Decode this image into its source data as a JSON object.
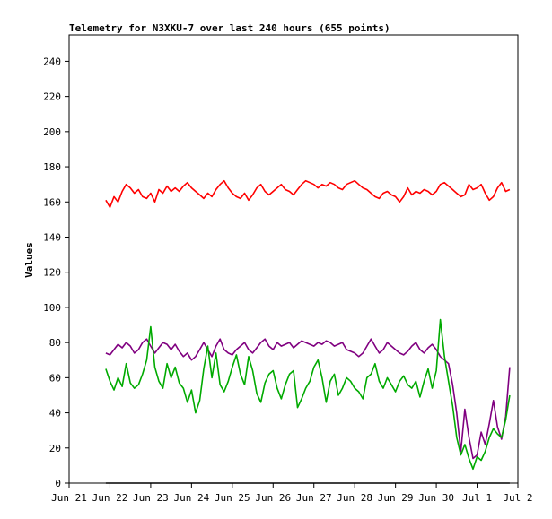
{
  "chart_data": {
    "type": "line",
    "title": "Telemetry for N3XKU-7 over last 240 hours (655 points)",
    "xlabel": "",
    "ylabel": "Values",
    "ylim": [
      0,
      255
    ],
    "xlim": [
      0,
      11
    ],
    "yticks": [
      0,
      20,
      40,
      60,
      80,
      100,
      120,
      140,
      160,
      180,
      200,
      220,
      240
    ],
    "xticks": [
      {
        "x": 0,
        "label": "Jun 21"
      },
      {
        "x": 1,
        "label": "Jun 22"
      },
      {
        "x": 2,
        "label": "Jun 23"
      },
      {
        "x": 3,
        "label": "Jun 24"
      },
      {
        "x": 4,
        "label": "Jun 25"
      },
      {
        "x": 5,
        "label": "Jun 26"
      },
      {
        "x": 6,
        "label": "Jun 27"
      },
      {
        "x": 7,
        "label": "Jun 28"
      },
      {
        "x": 8,
        "label": "Jun 29"
      },
      {
        "x": 9,
        "label": "Jun 30"
      },
      {
        "x": 10,
        "label": "Jul 1"
      },
      {
        "x": 11,
        "label": "Jul 2"
      }
    ],
    "grid": false,
    "legend": "none",
    "series": [
      {
        "color": "#ff0000",
        "x": [
          0.9,
          1.0,
          1.1,
          1.2,
          1.3,
          1.4,
          1.5,
          1.6,
          1.7,
          1.8,
          1.9,
          2.0,
          2.1,
          2.2,
          2.3,
          2.4,
          2.5,
          2.6,
          2.7,
          2.8,
          2.9,
          3.0,
          3.1,
          3.2,
          3.3,
          3.4,
          3.5,
          3.6,
          3.7,
          3.8,
          3.9,
          4.0,
          4.1,
          4.2,
          4.3,
          4.4,
          4.5,
          4.6,
          4.7,
          4.8,
          4.9,
          5.0,
          5.1,
          5.2,
          5.3,
          5.4,
          5.5,
          5.6,
          5.7,
          5.8,
          5.9,
          6.0,
          6.1,
          6.2,
          6.3,
          6.4,
          6.5,
          6.6,
          6.7,
          6.8,
          6.9,
          7.0,
          7.1,
          7.2,
          7.3,
          7.4,
          7.5,
          7.6,
          7.7,
          7.8,
          7.9,
          8.0,
          8.1,
          8.2,
          8.3,
          8.4,
          8.5,
          8.6,
          8.7,
          8.8,
          8.9,
          9.0,
          9.1,
          9.2,
          9.3,
          9.4,
          9.5,
          9.6,
          9.7,
          9.8,
          9.9,
          10.0,
          10.1,
          10.2,
          10.3,
          10.4,
          10.5,
          10.6,
          10.7,
          10.8
        ],
        "y": [
          161,
          157,
          163,
          160,
          166,
          170,
          168,
          165,
          167,
          163,
          162,
          165,
          160,
          167,
          165,
          169,
          166,
          168,
          166,
          169,
          171,
          168,
          166,
          164,
          162,
          165,
          163,
          167,
          170,
          172,
          168,
          165,
          163,
          162,
          165,
          161,
          164,
          168,
          170,
          166,
          164,
          166,
          168,
          170,
          167,
          166,
          164,
          167,
          170,
          172,
          171,
          170,
          168,
          170,
          169,
          171,
          170,
          168,
          167,
          170,
          171,
          172,
          170,
          168,
          167,
          165,
          163,
          162,
          165,
          166,
          164,
          163,
          160,
          163,
          168,
          164,
          166,
          165,
          167,
          166,
          164,
          166,
          170,
          171,
          169,
          167,
          165,
          163,
          164,
          170,
          167,
          168,
          170,
          165,
          161,
          163,
          168,
          171,
          166,
          167
        ],
        "y_note": ""
      },
      {
        "color": "#800080",
        "x": [
          0.9,
          1.0,
          1.1,
          1.2,
          1.3,
          1.4,
          1.5,
          1.6,
          1.7,
          1.8,
          1.9,
          2.0,
          2.1,
          2.2,
          2.3,
          2.4,
          2.5,
          2.6,
          2.7,
          2.8,
          2.9,
          3.0,
          3.1,
          3.2,
          3.3,
          3.4,
          3.5,
          3.6,
          3.7,
          3.8,
          3.9,
          4.0,
          4.1,
          4.2,
          4.3,
          4.4,
          4.5,
          4.6,
          4.7,
          4.8,
          4.9,
          5.0,
          5.1,
          5.2,
          5.3,
          5.4,
          5.5,
          5.6,
          5.7,
          5.8,
          5.9,
          6.0,
          6.1,
          6.2,
          6.3,
          6.4,
          6.5,
          6.6,
          6.7,
          6.8,
          6.9,
          7.0,
          7.1,
          7.2,
          7.3,
          7.4,
          7.5,
          7.6,
          7.7,
          7.8,
          7.9,
          8.0,
          8.1,
          8.2,
          8.3,
          8.4,
          8.5,
          8.6,
          8.7,
          8.8,
          8.9,
          9.0,
          9.1,
          9.2,
          9.3,
          9.4,
          9.5,
          9.6,
          9.7,
          9.8,
          9.9,
          10.0,
          10.1,
          10.2,
          10.3,
          10.4,
          10.5,
          10.6,
          10.7,
          10.8
        ],
        "y": [
          74,
          73,
          76,
          79,
          77,
          80,
          78,
          74,
          76,
          80,
          82,
          78,
          74,
          77,
          80,
          79,
          76,
          79,
          75,
          72,
          74,
          70,
          72,
          76,
          80,
          76,
          72,
          78,
          82,
          76,
          74,
          73,
          76,
          78,
          80,
          76,
          74,
          77,
          80,
          82,
          78,
          76,
          80,
          78,
          79,
          80,
          77,
          79,
          81,
          80,
          79,
          78,
          80,
          79,
          81,
          80,
          78,
          79,
          80,
          76,
          75,
          74,
          72,
          74,
          78,
          82,
          78,
          74,
          76,
          80,
          78,
          76,
          74,
          73,
          75,
          78,
          80,
          76,
          74,
          77,
          79,
          76,
          72,
          70,
          68,
          56,
          40,
          18,
          42,
          26,
          14,
          16,
          29,
          22,
          34,
          47,
          32,
          25,
          38,
          66
        ]
      },
      {
        "color": "#00aa00",
        "x": [
          0.9,
          1.0,
          1.1,
          1.2,
          1.3,
          1.4,
          1.5,
          1.6,
          1.7,
          1.8,
          1.9,
          2.0,
          2.1,
          2.2,
          2.3,
          2.4,
          2.5,
          2.6,
          2.7,
          2.8,
          2.9,
          3.0,
          3.1,
          3.2,
          3.3,
          3.4,
          3.5,
          3.6,
          3.7,
          3.8,
          3.9,
          4.0,
          4.1,
          4.2,
          4.3,
          4.4,
          4.5,
          4.6,
          4.7,
          4.8,
          4.9,
          5.0,
          5.1,
          5.2,
          5.3,
          5.4,
          5.5,
          5.6,
          5.7,
          5.8,
          5.9,
          6.0,
          6.1,
          6.2,
          6.3,
          6.4,
          6.5,
          6.6,
          6.7,
          6.8,
          6.9,
          7.0,
          7.1,
          7.2,
          7.3,
          7.4,
          7.5,
          7.6,
          7.7,
          7.8,
          7.9,
          8.0,
          8.1,
          8.2,
          8.3,
          8.4,
          8.5,
          8.6,
          8.7,
          8.8,
          8.9,
          9.0,
          9.1,
          9.2,
          9.3,
          9.4,
          9.5,
          9.6,
          9.7,
          9.8,
          9.9,
          10.0,
          10.1,
          10.2,
          10.3,
          10.4,
          10.5,
          10.6,
          10.7,
          10.8
        ],
        "y": [
          65,
          58,
          53,
          60,
          55,
          68,
          57,
          54,
          56,
          62,
          70,
          89,
          66,
          58,
          54,
          68,
          60,
          66,
          57,
          54,
          46,
          53,
          40,
          47,
          65,
          78,
          60,
          74,
          56,
          52,
          58,
          66,
          73,
          62,
          56,
          72,
          64,
          51,
          46,
          57,
          62,
          64,
          54,
          48,
          56,
          62,
          64,
          43,
          48,
          54,
          58,
          66,
          70,
          60,
          46,
          58,
          62,
          50,
          54,
          60,
          58,
          54,
          52,
          48,
          60,
          62,
          68,
          58,
          54,
          60,
          56,
          52,
          58,
          61,
          56,
          54,
          58,
          49,
          58,
          65,
          54,
          64,
          93,
          72,
          58,
          44,
          26,
          16,
          22,
          14,
          8,
          15,
          13,
          18,
          26,
          31,
          28,
          26,
          36,
          50
        ]
      }
    ],
    "baseline": {
      "color": "#000000",
      "value": 0,
      "x_start": 0.9,
      "x_end": 10.8
    }
  }
}
